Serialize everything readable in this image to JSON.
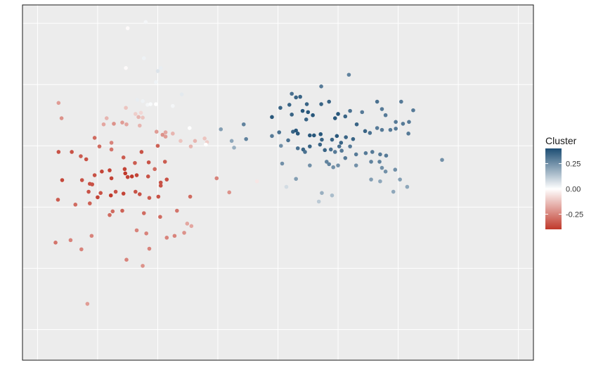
{
  "chart_data": {
    "type": "scatter",
    "title": "",
    "xlabel": "",
    "ylabel": "",
    "grid": true,
    "legend": {
      "title": "Cluster",
      "placement": "right",
      "ticks": [
        {
          "value": 0.25,
          "label": "0.25"
        },
        {
          "value": 0.0,
          "label": "0.00"
        },
        {
          "value": -0.25,
          "label": "-0.25"
        }
      ],
      "range": [
        -0.4,
        0.4
      ],
      "colors": {
        "low": "#c0392b",
        "mid": "#ffffff",
        "high": "#1d4e74"
      }
    },
    "xlim": [
      0,
      850
    ],
    "ylim": [
      0,
      580
    ],
    "x_gridlines": [
      25,
      125,
      225,
      325,
      425,
      525,
      625,
      725,
      825
    ],
    "y_gridlines": [
      30,
      130,
      230,
      330,
      430,
      530
    ],
    "points": [
      {
        "x": 60,
        "y": 160,
        "c": -0.2
      },
      {
        "x": 65,
        "y": 185,
        "c": -0.22
      },
      {
        "x": 60,
        "y": 240,
        "c": -0.35
      },
      {
        "x": 82,
        "y": 240,
        "c": -0.35
      },
      {
        "x": 97,
        "y": 247,
        "c": -0.33
      },
      {
        "x": 106,
        "y": 252,
        "c": -0.35
      },
      {
        "x": 120,
        "y": 217,
        "c": -0.3
      },
      {
        "x": 128,
        "y": 231,
        "c": -0.3
      },
      {
        "x": 135,
        "y": 195,
        "c": -0.18
      },
      {
        "x": 140,
        "y": 185,
        "c": -0.15
      },
      {
        "x": 152,
        "y": 194,
        "c": -0.22
      },
      {
        "x": 166,
        "y": 192,
        "c": -0.2
      },
      {
        "x": 172,
        "y": 168,
        "c": -0.12
      },
      {
        "x": 173,
        "y": 195,
        "c": -0.18
      },
      {
        "x": 193,
        "y": 183,
        "c": -0.15
      },
      {
        "x": 195,
        "y": 197,
        "c": -0.15
      },
      {
        "x": 188,
        "y": 178,
        "c": -0.1
      },
      {
        "x": 197,
        "y": 176,
        "c": -0.08
      },
      {
        "x": 200,
        "y": 184,
        "c": -0.12
      },
      {
        "x": 223,
        "y": 207,
        "c": -0.2
      },
      {
        "x": 233,
        "y": 212,
        "c": -0.22
      },
      {
        "x": 238,
        "y": 208,
        "c": -0.18
      },
      {
        "x": 238,
        "y": 215,
        "c": -0.2
      },
      {
        "x": 250,
        "y": 210,
        "c": -0.15
      },
      {
        "x": 263,
        "y": 222,
        "c": -0.12
      },
      {
        "x": 287,
        "y": 222,
        "c": -0.15
      },
      {
        "x": 303,
        "y": 218,
        "c": -0.12
      },
      {
        "x": 148,
        "y": 225,
        "c": -0.25
      },
      {
        "x": 148,
        "y": 236,
        "c": -0.28
      },
      {
        "x": 168,
        "y": 249,
        "c": -0.33
      },
      {
        "x": 187,
        "y": 258,
        "c": -0.33
      },
      {
        "x": 198,
        "y": 240,
        "c": -0.35
      },
      {
        "x": 210,
        "y": 257,
        "c": -0.35
      },
      {
        "x": 225,
        "y": 230,
        "c": -0.32
      },
      {
        "x": 237,
        "y": 256,
        "c": -0.33
      },
      {
        "x": 230,
        "y": 290,
        "c": -0.35
      },
      {
        "x": 66,
        "y": 286,
        "c": -0.37
      },
      {
        "x": 99,
        "y": 286,
        "c": -0.35
      },
      {
        "x": 112,
        "y": 292,
        "c": -0.35
      },
      {
        "x": 120,
        "y": 278,
        "c": -0.35
      },
      {
        "x": 132,
        "y": 272,
        "c": -0.38
      },
      {
        "x": 145,
        "y": 270,
        "c": -0.38
      },
      {
        "x": 148,
        "y": 283,
        "c": -0.38
      },
      {
        "x": 170,
        "y": 268,
        "c": -0.38
      },
      {
        "x": 171,
        "y": 275,
        "c": -0.4
      },
      {
        "x": 175,
        "y": 281,
        "c": -0.38
      },
      {
        "x": 182,
        "y": 280,
        "c": -0.4
      },
      {
        "x": 190,
        "y": 278,
        "c": -0.38
      },
      {
        "x": 209,
        "y": 280,
        "c": -0.35
      },
      {
        "x": 220,
        "y": 268,
        "c": -0.3
      },
      {
        "x": 230,
        "y": 295,
        "c": -0.35
      },
      {
        "x": 240,
        "y": 285,
        "c": -0.35
      },
      {
        "x": 110,
        "y": 305,
        "c": -0.35
      },
      {
        "x": 116,
        "y": 293,
        "c": -0.35
      },
      {
        "x": 125,
        "y": 314,
        "c": -0.38
      },
      {
        "x": 130,
        "y": 307,
        "c": -0.35
      },
      {
        "x": 147,
        "y": 311,
        "c": -0.4
      },
      {
        "x": 155,
        "y": 305,
        "c": -0.35
      },
      {
        "x": 168,
        "y": 308,
        "c": -0.38
      },
      {
        "x": 188,
        "y": 305,
        "c": -0.35
      },
      {
        "x": 195,
        "y": 309,
        "c": -0.35
      },
      {
        "x": 211,
        "y": 315,
        "c": -0.33
      },
      {
        "x": 226,
        "y": 313,
        "c": -0.35
      },
      {
        "x": 279,
        "y": 313,
        "c": -0.3
      },
      {
        "x": 59,
        "y": 318,
        "c": -0.33
      },
      {
        "x": 88,
        "y": 326,
        "c": -0.3
      },
      {
        "x": 112,
        "y": 324,
        "c": -0.32
      },
      {
        "x": 145,
        "y": 343,
        "c": -0.3
      },
      {
        "x": 150,
        "y": 337,
        "c": -0.3
      },
      {
        "x": 166,
        "y": 336,
        "c": -0.32
      },
      {
        "x": 202,
        "y": 340,
        "c": -0.3
      },
      {
        "x": 229,
        "y": 346,
        "c": -0.3
      },
      {
        "x": 257,
        "y": 336,
        "c": -0.28
      },
      {
        "x": 253,
        "y": 377,
        "c": -0.25
      },
      {
        "x": 269,
        "y": 372,
        "c": -0.22
      },
      {
        "x": 274,
        "y": 357,
        "c": -0.18
      },
      {
        "x": 281,
        "y": 361,
        "c": -0.18
      },
      {
        "x": 190,
        "y": 368,
        "c": -0.25
      },
      {
        "x": 206,
        "y": 373,
        "c": -0.25
      },
      {
        "x": 240,
        "y": 380,
        "c": -0.25
      },
      {
        "x": 115,
        "y": 377,
        "c": -0.25
      },
      {
        "x": 55,
        "y": 388,
        "c": -0.28
      },
      {
        "x": 80,
        "y": 384,
        "c": -0.25
      },
      {
        "x": 98,
        "y": 399,
        "c": -0.25
      },
      {
        "x": 211,
        "y": 398,
        "c": -0.25
      },
      {
        "x": 173,
        "y": 416,
        "c": -0.25
      },
      {
        "x": 200,
        "y": 426,
        "c": -0.22
      },
      {
        "x": 108,
        "y": 488,
        "c": -0.2
      },
      {
        "x": 323,
        "y": 283,
        "c": -0.25
      },
      {
        "x": 344,
        "y": 306,
        "c": -0.22
      },
      {
        "x": 280,
        "y": 231,
        "c": -0.15
      },
      {
        "x": 307,
        "y": 224,
        "c": -0.1
      },
      {
        "x": 390,
        "y": 288,
        "c": -0.05
      },
      {
        "x": 175,
        "y": 38,
        "c": -0.01
      },
      {
        "x": 205,
        "y": 28,
        "c": 0.02
      },
      {
        "x": 202,
        "y": 87,
        "c": 0.03
      },
      {
        "x": 172,
        "y": 103,
        "c": -0.01
      },
      {
        "x": 230,
        "y": 103,
        "c": 0.04
      },
      {
        "x": 222,
        "y": 126,
        "c": 0.03
      },
      {
        "x": 265,
        "y": 146,
        "c": 0.05
      },
      {
        "x": 250,
        "y": 165,
        "c": 0.02
      },
      {
        "x": 191,
        "y": 155,
        "c": 0.04
      },
      {
        "x": 200,
        "y": 157,
        "c": 0.03
      },
      {
        "x": 208,
        "y": 163,
        "c": 0.02
      },
      {
        "x": 213,
        "y": 162,
        "c": 0.01
      },
      {
        "x": 222,
        "y": 162,
        "c": 0.0
      },
      {
        "x": 225,
        "y": 108,
        "c": 0.06
      },
      {
        "x": 278,
        "y": 201,
        "c": 0.0
      },
      {
        "x": 305,
        "y": 228,
        "c": 0.0
      },
      {
        "x": 330,
        "y": 203,
        "c": 0.22
      },
      {
        "x": 348,
        "y": 222,
        "c": 0.2
      },
      {
        "x": 368,
        "y": 195,
        "c": 0.28
      },
      {
        "x": 372,
        "y": 219,
        "c": 0.28
      },
      {
        "x": 352,
        "y": 233,
        "c": 0.18
      },
      {
        "x": 439,
        "y": 297,
        "c": 0.08
      },
      {
        "x": 493,
        "y": 321,
        "c": 0.12
      },
      {
        "x": 498,
        "y": 307,
        "c": 0.18
      },
      {
        "x": 515,
        "y": 311,
        "c": 0.15
      },
      {
        "x": 543,
        "y": 114,
        "c": 0.28
      },
      {
        "x": 497,
        "y": 133,
        "c": 0.3
      },
      {
        "x": 448,
        "y": 145,
        "c": 0.32
      },
      {
        "x": 455,
        "y": 151,
        "c": 0.35
      },
      {
        "x": 462,
        "y": 150,
        "c": 0.35
      },
      {
        "x": 429,
        "y": 168,
        "c": 0.35
      },
      {
        "x": 415,
        "y": 183,
        "c": 0.38
      },
      {
        "x": 444,
        "y": 163,
        "c": 0.35
      },
      {
        "x": 448,
        "y": 179,
        "c": 0.35
      },
      {
        "x": 466,
        "y": 173,
        "c": 0.38
      },
      {
        "x": 475,
        "y": 175,
        "c": 0.38
      },
      {
        "x": 483,
        "y": 180,
        "c": 0.38
      },
      {
        "x": 472,
        "y": 187,
        "c": 0.35
      },
      {
        "x": 497,
        "y": 162,
        "c": 0.35
      },
      {
        "x": 510,
        "y": 158,
        "c": 0.35
      },
      {
        "x": 473,
        "y": 162,
        "c": 0.35
      },
      {
        "x": 520,
        "y": 185,
        "c": 0.38
      },
      {
        "x": 525,
        "y": 178,
        "c": 0.38
      },
      {
        "x": 537,
        "y": 182,
        "c": 0.35
      },
      {
        "x": 545,
        "y": 173,
        "c": 0.32
      },
      {
        "x": 565,
        "y": 175,
        "c": 0.3
      },
      {
        "x": 590,
        "y": 158,
        "c": 0.32
      },
      {
        "x": 598,
        "y": 170,
        "c": 0.3
      },
      {
        "x": 604,
        "y": 180,
        "c": 0.3
      },
      {
        "x": 630,
        "y": 158,
        "c": 0.3
      },
      {
        "x": 650,
        "y": 172,
        "c": 0.3
      },
      {
        "x": 643,
        "y": 191,
        "c": 0.3
      },
      {
        "x": 621,
        "y": 191,
        "c": 0.3
      },
      {
        "x": 621,
        "y": 202,
        "c": 0.3
      },
      {
        "x": 633,
        "y": 194,
        "c": 0.3
      },
      {
        "x": 598,
        "y": 204,
        "c": 0.3
      },
      {
        "x": 556,
        "y": 195,
        "c": 0.35
      },
      {
        "x": 570,
        "y": 206,
        "c": 0.35
      },
      {
        "x": 578,
        "y": 209,
        "c": 0.32
      },
      {
        "x": 590,
        "y": 201,
        "c": 0.3
      },
      {
        "x": 612,
        "y": 204,
        "c": 0.3
      },
      {
        "x": 642,
        "y": 210,
        "c": 0.3
      },
      {
        "x": 415,
        "y": 214,
        "c": 0.3
      },
      {
        "x": 427,
        "y": 208,
        "c": 0.32
      },
      {
        "x": 442,
        "y": 221,
        "c": 0.32
      },
      {
        "x": 450,
        "y": 207,
        "c": 0.35
      },
      {
        "x": 455,
        "y": 205,
        "c": 0.38
      },
      {
        "x": 458,
        "y": 210,
        "c": 0.38
      },
      {
        "x": 478,
        "y": 213,
        "c": 0.38
      },
      {
        "x": 485,
        "y": 213,
        "c": 0.38
      },
      {
        "x": 496,
        "y": 211,
        "c": 0.38
      },
      {
        "x": 498,
        "y": 220,
        "c": 0.35
      },
      {
        "x": 515,
        "y": 220,
        "c": 0.35
      },
      {
        "x": 523,
        "y": 214,
        "c": 0.38
      },
      {
        "x": 538,
        "y": 216,
        "c": 0.35
      },
      {
        "x": 550,
        "y": 219,
        "c": 0.35
      },
      {
        "x": 530,
        "y": 225,
        "c": 0.35
      },
      {
        "x": 495,
        "y": 228,
        "c": 0.35
      },
      {
        "x": 478,
        "y": 231,
        "c": 0.35
      },
      {
        "x": 467,
        "y": 236,
        "c": 0.35
      },
      {
        "x": 458,
        "y": 234,
        "c": 0.32
      },
      {
        "x": 470,
        "y": 240,
        "c": 0.32
      },
      {
        "x": 503,
        "y": 237,
        "c": 0.35
      },
      {
        "x": 513,
        "y": 236,
        "c": 0.32
      },
      {
        "x": 520,
        "y": 240,
        "c": 0.3
      },
      {
        "x": 527,
        "y": 231,
        "c": 0.32
      },
      {
        "x": 531,
        "y": 238,
        "c": 0.3
      },
      {
        "x": 545,
        "y": 231,
        "c": 0.3
      },
      {
        "x": 537,
        "y": 250,
        "c": 0.3
      },
      {
        "x": 555,
        "y": 244,
        "c": 0.3
      },
      {
        "x": 571,
        "y": 242,
        "c": 0.3
      },
      {
        "x": 582,
        "y": 240,
        "c": 0.3
      },
      {
        "x": 595,
        "y": 244,
        "c": 0.3
      },
      {
        "x": 605,
        "y": 246,
        "c": 0.3
      },
      {
        "x": 580,
        "y": 256,
        "c": 0.28
      },
      {
        "x": 594,
        "y": 256,
        "c": 0.28
      },
      {
        "x": 555,
        "y": 262,
        "c": 0.25
      },
      {
        "x": 506,
        "y": 256,
        "c": 0.28
      },
      {
        "x": 510,
        "y": 260,
        "c": 0.28
      },
      {
        "x": 517,
        "y": 265,
        "c": 0.25
      },
      {
        "x": 525,
        "y": 262,
        "c": 0.25
      },
      {
        "x": 478,
        "y": 262,
        "c": 0.25
      },
      {
        "x": 430,
        "y": 230,
        "c": 0.25
      },
      {
        "x": 432,
        "y": 259,
        "c": 0.25
      },
      {
        "x": 455,
        "y": 284,
        "c": 0.22
      },
      {
        "x": 580,
        "y": 285,
        "c": 0.22
      },
      {
        "x": 595,
        "y": 288,
        "c": 0.2
      },
      {
        "x": 604,
        "y": 272,
        "c": 0.25
      },
      {
        "x": 598,
        "y": 266,
        "c": 0.25
      },
      {
        "x": 620,
        "y": 269,
        "c": 0.25
      },
      {
        "x": 628,
        "y": 285,
        "c": 0.22
      },
      {
        "x": 640,
        "y": 297,
        "c": 0.2
      },
      {
        "x": 617,
        "y": 305,
        "c": 0.2
      },
      {
        "x": 698,
        "y": 253,
        "c": 0.25
      }
    ]
  }
}
